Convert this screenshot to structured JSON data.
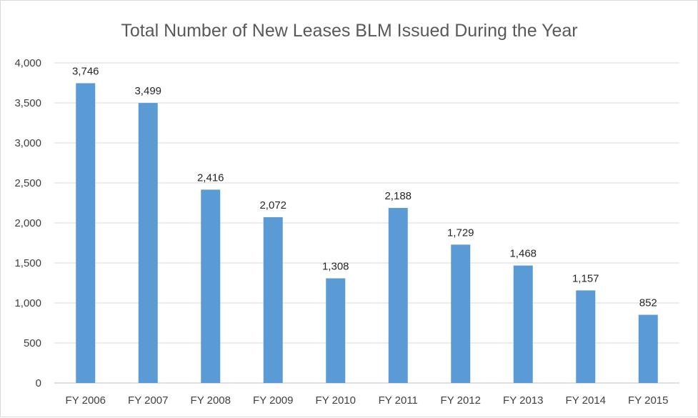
{
  "chart_data": {
    "type": "bar",
    "title": "Total Number of New Leases BLM Issued During the Year",
    "categories": [
      "FY 2006",
      "FY 2007",
      "FY 2008",
      "FY 2009",
      "FY 2010",
      "FY 2011",
      "FY 2012",
      "FY 2013",
      "FY 2014",
      "FY 2015"
    ],
    "values": [
      3746,
      3499,
      2416,
      2072,
      1308,
      2188,
      1729,
      1468,
      1157,
      852
    ],
    "data_labels": [
      "3,746",
      "3,499",
      "2,416",
      "2,072",
      "1,308",
      "2,188",
      "1,729",
      "1,468",
      "1,157",
      "852"
    ],
    "ylim": [
      0,
      4000
    ],
    "yticks": [
      0,
      500,
      1000,
      1500,
      2000,
      2500,
      3000,
      3500,
      4000
    ],
    "ytick_labels": [
      "0",
      "500",
      "1,000",
      "1,500",
      "2,000",
      "2,500",
      "3,000",
      "3,500",
      "4,000"
    ],
    "grid": true,
    "bar_color": "#5b9bd5"
  }
}
